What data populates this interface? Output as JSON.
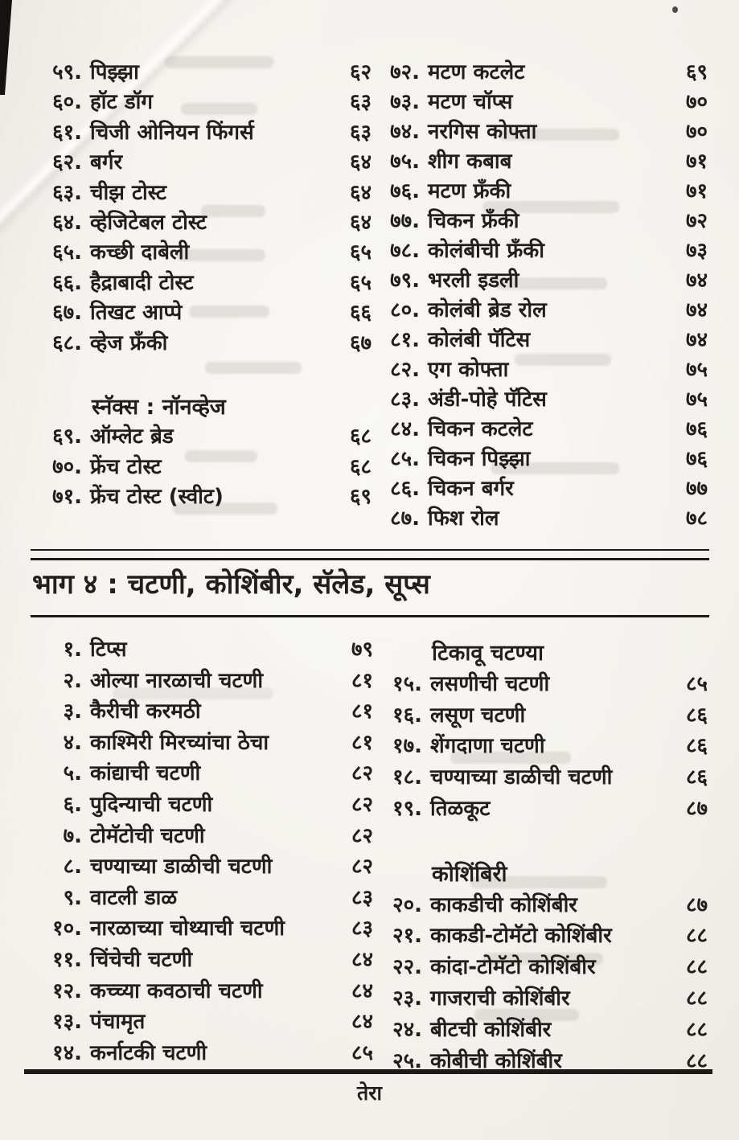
{
  "page": {
    "section_title": "भाग ४ : चटणी, कोशिंबीर, सॅलेड, सूप्स",
    "footer_page_label": "तेरा"
  },
  "toc": {
    "top_left": {
      "items": [
        {
          "no": "५९.",
          "title": "पिझ्झा",
          "page": "६२"
        },
        {
          "no": "६०.",
          "title": "हॉट डॉग",
          "page": "६३"
        },
        {
          "no": "६१.",
          "title": "चिजी ओनियन फिंगर्स",
          "page": "६३"
        },
        {
          "no": "६२.",
          "title": "बर्गर",
          "page": "६४"
        },
        {
          "no": "६३.",
          "title": "चीझ टोस्ट",
          "page": "६४"
        },
        {
          "no": "६४.",
          "title": "व्हेजिटेबल टोस्ट",
          "page": "६४"
        },
        {
          "no": "६५.",
          "title": "कच्छी दाबेली",
          "page": "६५"
        },
        {
          "no": "६६.",
          "title": "हैद्राबादी टोस्ट",
          "page": "६५"
        },
        {
          "no": "६७.",
          "title": "तिखट आप्पे",
          "page": "६६"
        },
        {
          "no": "६८.",
          "title": "व्हेज फ्रँकी",
          "page": "६७"
        },
        {
          "spacer": true
        },
        {
          "heading": "स्नॅक्स : नॉनव्हेज"
        },
        {
          "no": "६९.",
          "title": "ऑम्लेट ब्रेड",
          "page": "६८"
        },
        {
          "no": "७०.",
          "title": "फ्रेंच टोस्ट",
          "page": "६८"
        },
        {
          "no": "७१.",
          "title": "फ्रेंच टोस्ट (स्वीट)",
          "page": "६९"
        }
      ]
    },
    "top_right": {
      "items": [
        {
          "no": "७२.",
          "title": "मटण कटलेट",
          "page": "६९"
        },
        {
          "no": "७३.",
          "title": "मटण चॉप्स",
          "page": "७०"
        },
        {
          "no": "७४.",
          "title": "नरगिस कोफ्ता",
          "page": "७०"
        },
        {
          "no": "७५.",
          "title": "शीग  कबाब",
          "page": "७१"
        },
        {
          "no": "७६.",
          "title": "मटण फ्रँकी",
          "page": "७१"
        },
        {
          "no": "७७.",
          "title": "चिकन फ्रँकी",
          "page": "७२"
        },
        {
          "no": "७८.",
          "title": "कोलंबीची फ्रँकी",
          "page": "७३"
        },
        {
          "no": "७९.",
          "title": "भरली इडली",
          "page": "७४"
        },
        {
          "no": "८०.",
          "title": "कोलंबी ब्रेड रोल",
          "page": "७४"
        },
        {
          "no": "८१.",
          "title": "कोलंबी पॅटिस",
          "page": "७४"
        },
        {
          "no": "८२.",
          "title": "एग कोफ्ता",
          "page": "७५"
        },
        {
          "no": "८३.",
          "title": "अंडी-पोहे पॅटिस",
          "page": "७५"
        },
        {
          "no": "८४.",
          "title": "चिकन कटलेट",
          "page": "७६"
        },
        {
          "no": "८५.",
          "title": "चिकन पिझ्झा",
          "page": "७६"
        },
        {
          "no": "८६.",
          "title": "चिकन बर्गर",
          "page": "७७"
        },
        {
          "no": "८७.",
          "title": "फिश रोल",
          "page": "७८"
        }
      ]
    },
    "bottom_left": {
      "items": [
        {
          "no": "१.",
          "title": "टिप्स",
          "page": "७९"
        },
        {
          "no": "२.",
          "title": "ओल्या नारळाची चटणी",
          "page": "८१"
        },
        {
          "no": "३.",
          "title": "कैरीची करमठी",
          "page": "८१"
        },
        {
          "no": "४.",
          "title": "काश्मिरी मिरच्यांचा ठेचा",
          "page": "८१"
        },
        {
          "no": "५.",
          "title": "कांद्याची चटणी",
          "page": "८२"
        },
        {
          "no": "६.",
          "title": "पुदिन्याची चटणी",
          "page": "८२"
        },
        {
          "no": "७.",
          "title": "टोमॅटोची चटणी",
          "page": "८२"
        },
        {
          "no": "८.",
          "title": "चण्याच्या डाळीची चटणी",
          "page": "८२"
        },
        {
          "no": "९.",
          "title": "वाटली डाळ",
          "page": "८३"
        },
        {
          "no": "१०.",
          "title": "नारळाच्या चोथ्याची चटणी",
          "page": "८३"
        },
        {
          "no": "११.",
          "title": "चिंचेची चटणी",
          "page": "८४"
        },
        {
          "no": "१२.",
          "title": "कच्च्या कवठाची चटणी",
          "page": "८४"
        },
        {
          "no": "१३.",
          "title": "पंचामृत",
          "page": "८४"
        },
        {
          "no": "१४.",
          "title": "कर्नाटकी चटणी",
          "page": "८५"
        }
      ]
    },
    "bottom_right": {
      "items": [
        {
          "heading": "टिकावू चटण्या"
        },
        {
          "no": "१५.",
          "title": "लसणीची चटणी",
          "page": "८५"
        },
        {
          "no": "१६.",
          "title": "लसूण चटणी",
          "page": "८६"
        },
        {
          "no": "१७.",
          "title": "शेंगदाणा चटणी",
          "page": "८६"
        },
        {
          "no": "१८.",
          "title": "चण्याच्या डाळीची चटणी",
          "page": "८६"
        },
        {
          "no": "१९.",
          "title": "तिळकूट",
          "page": "८७"
        },
        {
          "spacer": true
        },
        {
          "heading": "कोशिंबिरी"
        },
        {
          "no": "२०.",
          "title": "काकडीची कोशिंबीर",
          "page": "८७"
        },
        {
          "no": "२१.",
          "title": "काकडी-टोमॅटो कोशिंबीर",
          "page": "८८"
        },
        {
          "no": "२२.",
          "title": "कांदा-टोमॅटो कोशिंबीर",
          "page": "८८"
        },
        {
          "no": "२३.",
          "title": "गाजराची कोशिंबीर",
          "page": "८८"
        },
        {
          "no": "२४.",
          "title": "बीटची कोशिंबीर",
          "page": "८८"
        },
        {
          "no": "२५.",
          "title": "कोबीची कोशिंबीर",
          "page": "८८"
        }
      ]
    }
  }
}
